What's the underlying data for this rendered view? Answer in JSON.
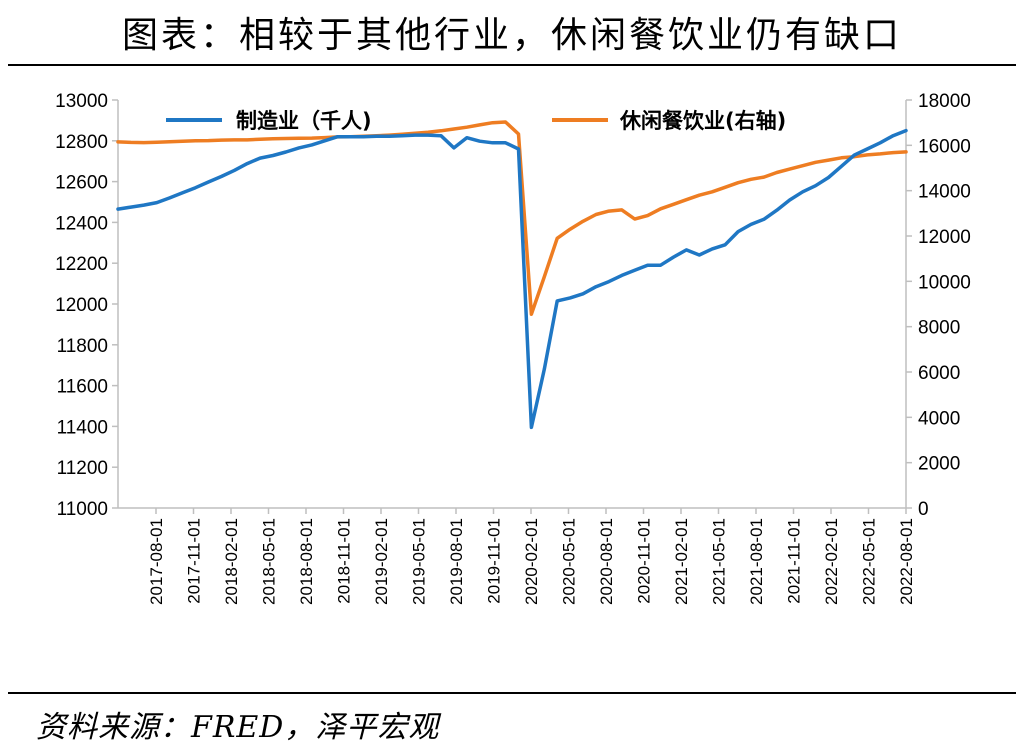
{
  "header": {
    "title": "图表：相较于其他行业，休闲餐饮业仍有缺口"
  },
  "footer": {
    "source": "资料来源：FRED，泽平宏观"
  },
  "colors": {
    "manufacturing": "#1f77c4",
    "leisure": "#ee7d22",
    "axis": "#bfbfbf"
  },
  "chart_data": {
    "type": "line",
    "title": "",
    "grid": false,
    "legend_position": "top",
    "x": [
      "2017-08-01",
      "2017-11-01",
      "2018-02-01",
      "2018-05-01",
      "2018-08-01",
      "2018-11-01",
      "2019-02-01",
      "2019-05-01",
      "2019-08-01",
      "2019-11-01",
      "2020-02-01",
      "2020-05-01",
      "2020-08-01",
      "2020-11-01",
      "2021-02-01",
      "2021-05-01",
      "2021-08-01",
      "2021-11-01",
      "2022-02-01",
      "2022-05-01",
      "2022-08-01"
    ],
    "y_left": {
      "range": [
        11000,
        13000
      ],
      "ticks": [
        "11000",
        "11200",
        "11400",
        "11600",
        "11800",
        "12000",
        "12200",
        "12400",
        "12600",
        "12800",
        "13000"
      ]
    },
    "y_right": {
      "range": [
        0,
        18000
      ],
      "ticks": [
        "0",
        "2000",
        "4000",
        "6000",
        "8000",
        "10000",
        "12000",
        "14000",
        "16000",
        "18000"
      ]
    },
    "series": [
      {
        "name": "制造业（千人)",
        "axis": "left",
        "points": [
          [
            0,
            12465
          ],
          [
            1,
            12475
          ],
          [
            2,
            12485
          ],
          [
            3,
            12497
          ],
          [
            4,
            12520
          ],
          [
            5,
            12545
          ],
          [
            6,
            12570
          ],
          [
            7,
            12598
          ],
          [
            8,
            12625
          ],
          [
            9,
            12655
          ],
          [
            10,
            12688
          ],
          [
            11,
            12715
          ],
          [
            12,
            12728
          ],
          [
            13,
            12745
          ],
          [
            14,
            12765
          ],
          [
            15,
            12780
          ],
          [
            16,
            12800
          ],
          [
            17,
            12820
          ],
          [
            18,
            12820
          ],
          [
            19,
            12820
          ],
          [
            20,
            12822
          ],
          [
            21,
            12822
          ],
          [
            22,
            12825
          ],
          [
            23,
            12828
          ],
          [
            24,
            12828
          ],
          [
            25,
            12825
          ],
          [
            26,
            12765
          ],
          [
            27,
            12815
          ],
          [
            28,
            12798
          ],
          [
            29,
            12790
          ],
          [
            30,
            12790
          ],
          [
            31,
            12760
          ],
          [
            32,
            11395
          ],
          [
            33,
            11680
          ],
          [
            34,
            12015
          ],
          [
            35,
            12030
          ],
          [
            36,
            12050
          ],
          [
            37,
            12085
          ],
          [
            38,
            12110
          ],
          [
            39,
            12140
          ],
          [
            40,
            12165
          ],
          [
            41,
            12190
          ],
          [
            42,
            12190
          ],
          [
            43,
            12230
          ],
          [
            44,
            12265
          ],
          [
            45,
            12240
          ],
          [
            46,
            12270
          ],
          [
            47,
            12290
          ],
          [
            48,
            12355
          ],
          [
            49,
            12390
          ],
          [
            50,
            12415
          ],
          [
            51,
            12460
          ],
          [
            52,
            12510
          ],
          [
            53,
            12550
          ],
          [
            54,
            12580
          ],
          [
            55,
            12620
          ],
          [
            56,
            12675
          ],
          [
            57,
            12730
          ],
          [
            58,
            12760
          ],
          [
            59,
            12790
          ],
          [
            60,
            12825
          ],
          [
            61,
            12850
          ]
        ]
      },
      {
        "name": "休闲餐饮业(右轴)",
        "axis": "right",
        "points": [
          [
            0,
            16150
          ],
          [
            1,
            16130
          ],
          [
            2,
            16120
          ],
          [
            3,
            16140
          ],
          [
            4,
            16160
          ],
          [
            5,
            16180
          ],
          [
            6,
            16200
          ],
          [
            7,
            16210
          ],
          [
            8,
            16230
          ],
          [
            9,
            16240
          ],
          [
            10,
            16240
          ],
          [
            11,
            16270
          ],
          [
            12,
            16290
          ],
          [
            13,
            16300
          ],
          [
            14,
            16310
          ],
          [
            15,
            16320
          ],
          [
            16,
            16340
          ],
          [
            17,
            16370
          ],
          [
            18,
            16380
          ],
          [
            19,
            16400
          ],
          [
            20,
            16420
          ],
          [
            21,
            16450
          ],
          [
            22,
            16490
          ],
          [
            23,
            16530
          ],
          [
            24,
            16580
          ],
          [
            25,
            16640
          ],
          [
            26,
            16720
          ],
          [
            27,
            16800
          ],
          [
            28,
            16900
          ],
          [
            29,
            17000
          ],
          [
            30,
            17030
          ],
          [
            31,
            16500
          ],
          [
            32,
            8550
          ],
          [
            33,
            10200
          ],
          [
            34,
            11900
          ],
          [
            35,
            12300
          ],
          [
            36,
            12650
          ],
          [
            37,
            12950
          ],
          [
            38,
            13100
          ],
          [
            39,
            13150
          ],
          [
            40,
            12750
          ],
          [
            41,
            12900
          ],
          [
            42,
            13200
          ],
          [
            43,
            13400
          ],
          [
            44,
            13600
          ],
          [
            45,
            13800
          ],
          [
            46,
            13950
          ],
          [
            47,
            14150
          ],
          [
            48,
            14350
          ],
          [
            49,
            14500
          ],
          [
            50,
            14600
          ],
          [
            51,
            14800
          ],
          [
            52,
            14950
          ],
          [
            53,
            15100
          ],
          [
            54,
            15250
          ],
          [
            55,
            15350
          ],
          [
            56,
            15450
          ],
          [
            57,
            15500
          ],
          [
            58,
            15580
          ],
          [
            59,
            15620
          ],
          [
            60,
            15680
          ],
          [
            61,
            15710
          ]
        ]
      }
    ]
  }
}
